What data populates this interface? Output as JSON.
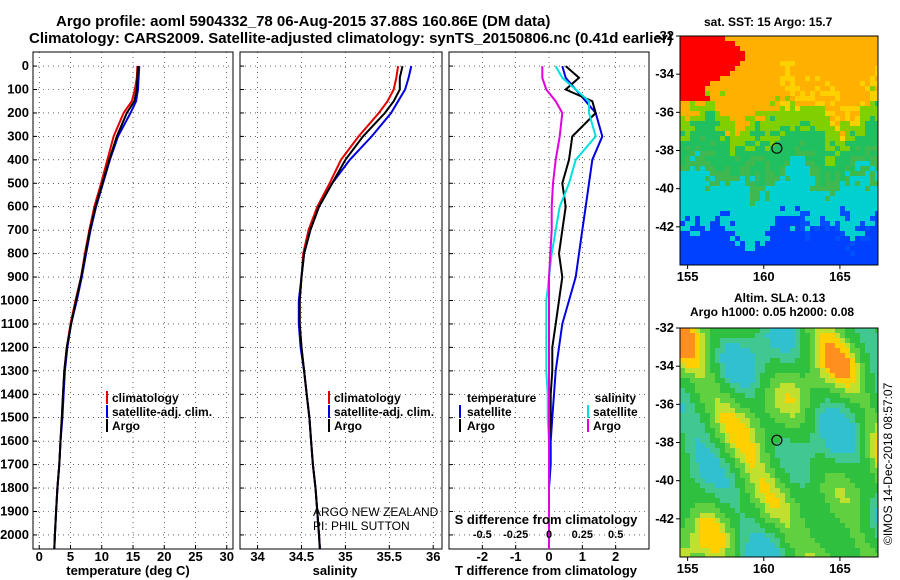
{
  "title_line1": "Argo profile: aoml 5904332_78 06-Aug-2015 37.88S 160.86E (DM data)",
  "title_line2": "Climatology: CARS2009. Satellite-adjusted climatology: synTS_20150806.nc (0.41d earlier)",
  "sst_label": "sat. SST: 15 Argo: 15.7",
  "sla_label1": "Altim. SLA: 0.13",
  "sla_label2": "Argo h1000: 0.05 h2000: 0.08",
  "credit": "©IMOS 14-Dec-2018 08:57:07",
  "notice_line1": "ARGO NEW ZEALAND",
  "notice_line2": "PI: PHIL SUTTON",
  "colors": {
    "climatology": "#e00000",
    "satellite": "#0000e0",
    "argo": "#000000",
    "satellite_s": "#00e0e0",
    "argo_s": "#e000e0"
  },
  "chart_data": [
    {
      "type": "line",
      "xlabel": "temperature (deg C)",
      "ylabel": "",
      "xlim": [
        -1,
        31
      ],
      "ylim": [
        2060,
        0
      ],
      "xticks": [
        "0",
        "5",
        "10",
        "15",
        "20",
        "25",
        "30"
      ],
      "yticks": [
        "0",
        "100",
        "200",
        "300",
        "400",
        "500",
        "600",
        "700",
        "800",
        "900",
        "1000",
        "1100",
        "1200",
        "1300",
        "1400",
        "1500",
        "1600",
        "1700",
        "1800",
        "1900",
        "2000"
      ],
      "grid": true,
      "legend": [
        "climatology",
        "satellite-adj. clim.",
        "Argo"
      ],
      "depths": [
        0,
        50,
        100,
        150,
        200,
        300,
        400,
        500,
        600,
        700,
        800,
        900,
        1000,
        1100,
        1200,
        1300,
        1400,
        1500,
        1600,
        1700,
        1800,
        1900,
        2000,
        2060
      ],
      "series": [
        {
          "name": "climatology",
          "values": [
            15.7,
            15.6,
            15.3,
            14.8,
            13.5,
            11.9,
            10.9,
            9.9,
            8.8,
            8.0,
            7.3,
            6.7,
            5.8,
            5.0,
            4.4,
            4.0,
            3.8,
            3.6,
            3.4,
            3.2,
            2.9,
            2.7,
            2.5,
            2.4
          ]
        },
        {
          "name": "satellite-adj. clim.",
          "values": [
            16.0,
            15.9,
            15.8,
            15.5,
            14.6,
            12.6,
            11.3,
            10.2,
            9.1,
            8.2,
            7.5,
            6.8,
            6.0,
            5.1,
            4.5,
            4.1,
            3.9,
            3.7,
            3.4,
            3.2,
            2.9,
            2.7,
            2.5,
            2.4
          ]
        },
        {
          "name": "Argo",
          "values": [
            15.8,
            15.7,
            15.6,
            15.2,
            14.0,
            12.4,
            11.2,
            10.1,
            9.0,
            8.1,
            7.4,
            6.7,
            5.9,
            5.1,
            4.4,
            4.0,
            3.8,
            3.6,
            3.4,
            3.2,
            2.9,
            2.7,
            2.5,
            2.4
          ]
        }
      ]
    },
    {
      "type": "line",
      "xlabel": "salinity",
      "xlim": [
        33.8,
        36.1
      ],
      "ylim": [
        2060,
        0
      ],
      "xticks": [
        "34",
        "34.5",
        "35",
        "35.5",
        "36"
      ],
      "grid": true,
      "legend": [
        "climatology",
        "satellite-adj. clim.",
        "Argo"
      ],
      "depths": [
        0,
        50,
        100,
        150,
        200,
        300,
        400,
        500,
        600,
        700,
        800,
        900,
        1000,
        1100,
        1200,
        1300,
        1400,
        1500,
        1600,
        1700,
        1800,
        1900,
        2000,
        2060
      ],
      "series": [
        {
          "name": "climatology",
          "values": [
            35.6,
            35.58,
            35.55,
            35.48,
            35.38,
            35.15,
            34.95,
            34.82,
            34.68,
            34.58,
            34.52,
            34.5,
            34.48,
            34.48,
            34.5,
            34.53,
            34.56,
            34.59,
            34.61,
            34.63,
            34.66,
            34.68,
            34.7,
            34.71
          ]
        },
        {
          "name": "satellite-adj. clim.",
          "values": [
            35.75,
            35.72,
            35.68,
            35.6,
            35.52,
            35.3,
            35.05,
            34.85,
            34.7,
            34.6,
            34.53,
            34.5,
            34.47,
            34.47,
            34.49,
            34.53,
            34.56,
            34.59,
            34.61,
            34.63,
            34.66,
            34.68,
            34.7,
            34.71
          ]
        },
        {
          "name": "Argo",
          "values": [
            35.65,
            35.62,
            35.62,
            35.55,
            35.45,
            35.2,
            35.0,
            34.85,
            34.7,
            34.6,
            34.53,
            34.5,
            34.48,
            34.48,
            34.5,
            34.53,
            34.56,
            34.59,
            34.61,
            34.63,
            34.66,
            34.68,
            34.7,
            34.71
          ]
        }
      ]
    },
    {
      "type": "line",
      "xlabel": "T difference from climatology",
      "xlabel_top": "S difference from climatology",
      "xlim": [
        -3,
        3
      ],
      "ylim": [
        2060,
        0
      ],
      "xticks": [
        "-2",
        "-1",
        "0",
        "1",
        "2"
      ],
      "xticks_top": [
        "-0.5",
        "-0.25",
        "0",
        "0.25",
        "0.5"
      ],
      "grid": true,
      "legend_left_title": "temperature",
      "legend_right_title": "salinity",
      "legend_left": [
        "satellite",
        "Argo"
      ],
      "legend_right": [
        "satellite",
        "Argo"
      ],
      "depths": [
        0,
        50,
        100,
        150,
        200,
        300,
        400,
        500,
        600,
        700,
        800,
        900,
        1000,
        1100,
        1200,
        1300,
        1400,
        1500,
        1600,
        1700,
        1800,
        1900,
        2000,
        2060
      ],
      "series": [
        {
          "name": "T satellite",
          "values": [
            0.4,
            0.5,
            0.8,
            1.1,
            1.4,
            1.6,
            1.3,
            1.2,
            1.1,
            1.0,
            0.9,
            0.8,
            0.6,
            0.4,
            0.3,
            0.2,
            0.15,
            0.1,
            0.05,
            0.05,
            0.0,
            0.0,
            0.0,
            0.0
          ]
        },
        {
          "name": "T Argo",
          "values": [
            0.5,
            0.9,
            0.5,
            1.3,
            1.4,
            0.7,
            0.6,
            0.4,
            0.5,
            0.4,
            0.3,
            0.4,
            0.3,
            0.2,
            0.1,
            0.1,
            0.05,
            0.05,
            0.0,
            0.0,
            0.0,
            0.0,
            0.0,
            0.0
          ]
        },
        {
          "name": "S satellite",
          "values": [
            0.05,
            0.1,
            0.2,
            0.3,
            0.3,
            0.35,
            0.2,
            0.15,
            0.08,
            0.05,
            0.02,
            0.0,
            -0.02,
            -0.02,
            -0.02,
            -0.02,
            -0.01,
            -0.01,
            0.0,
            0.0,
            0.0,
            0.0,
            0.0,
            0.0
          ]
        },
        {
          "name": "S Argo",
          "values": [
            -0.05,
            -0.05,
            -0.02,
            0.05,
            0.1,
            0.08,
            0.05,
            0.03,
            0.02,
            0.02,
            0.01,
            0.0,
            0.0,
            0.0,
            0.0,
            0.0,
            0.0,
            0.0,
            0.0,
            0.0,
            0.0,
            0.0,
            0.0,
            0.0
          ]
        }
      ]
    },
    {
      "type": "heatmap",
      "title": "sat. SST: 15 Argo: 15.7",
      "xlim": [
        154.5,
        167.5
      ],
      "ylim": [
        -44,
        -32
      ],
      "xticks": [
        "155",
        "160",
        "165"
      ],
      "yticks": [
        "-32",
        "-34",
        "-36",
        "-38",
        "-40",
        "-42"
      ],
      "marker": [
        160.86,
        -37.88
      ]
    },
    {
      "type": "heatmap",
      "title": "Altim. SLA: 0.13",
      "xlim": [
        154.5,
        167.5
      ],
      "ylim": [
        -44,
        -32
      ],
      "xticks": [
        "155",
        "160",
        "165"
      ],
      "yticks": [
        "-32",
        "-34",
        "-36",
        "-38",
        "-40",
        "-42"
      ],
      "marker": [
        160.86,
        -37.88
      ]
    }
  ]
}
